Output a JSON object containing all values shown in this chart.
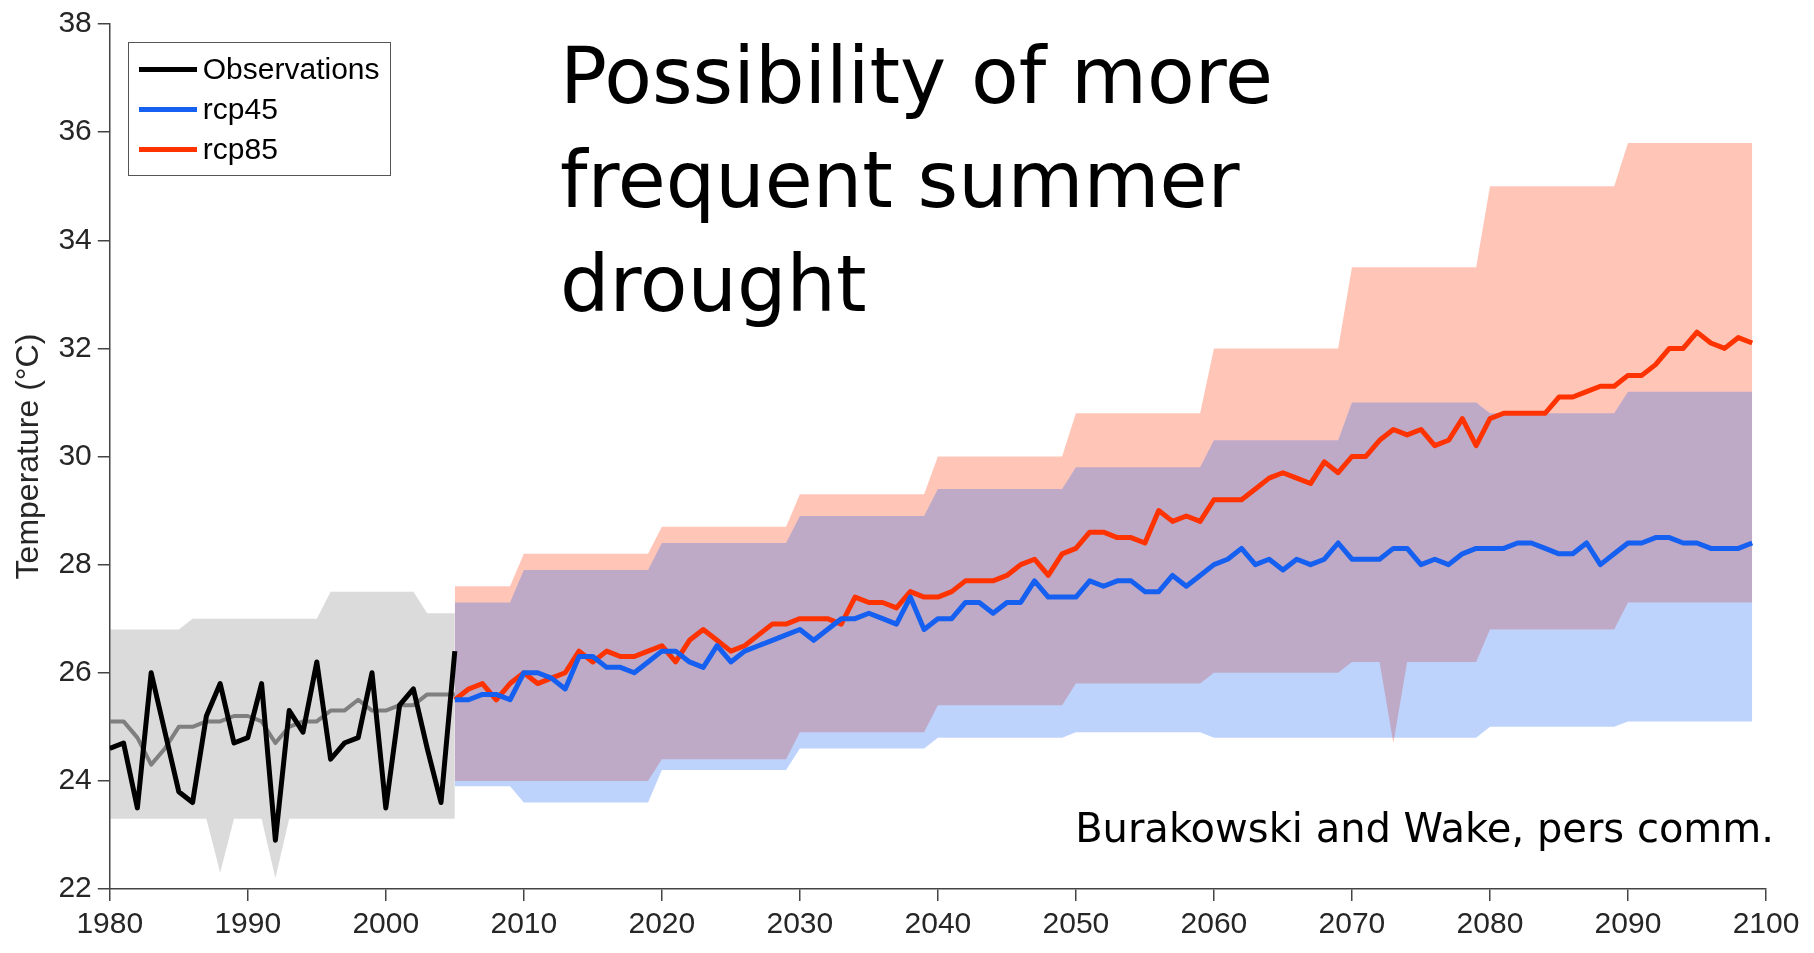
{
  "chart_data": {
    "type": "line",
    "title": "Possibility of more frequent summer drought",
    "ylabel": "Temperature (°C)",
    "annotations": [
      "Burakowski and Wake, pers comm."
    ],
    "xlim": [
      1980,
      2100
    ],
    "xticks": [
      1980,
      1990,
      2000,
      2010,
      2020,
      2030,
      2040,
      2050,
      2060,
      2070,
      2080,
      2090,
      2100
    ],
    "ylim": [
      22,
      38
    ],
    "yticks": [
      22,
      24,
      26,
      28,
      30,
      32,
      34,
      36,
      38
    ],
    "grid": false,
    "legend": "top left",
    "line_style": "solid",
    "series": [
      {
        "color": "#7f7f7f",
        "x": [
          1980,
          1981,
          1982,
          1983,
          1984,
          1985,
          1986,
          1987,
          1988,
          1989,
          1990,
          1991,
          1992,
          1993,
          1994,
          1995,
          1996,
          1997,
          1998,
          1999,
          2000,
          2001,
          2002,
          2003,
          2004,
          2005
        ],
        "values": [
          25.1,
          25.1,
          24.8,
          24.3,
          24.6,
          25.0,
          25.0,
          25.1,
          25.1,
          25.2,
          25.2,
          25.1,
          24.7,
          25.0,
          25.1,
          25.1,
          25.3,
          25.3,
          25.5,
          25.3,
          25.3,
          25.4,
          25.4,
          25.6,
          25.6,
          25.6
        ],
        "lower": [
          23.3,
          23.3,
          23.3,
          23.3,
          23.3,
          23.3,
          23.3,
          23.3,
          22.3,
          23.3,
          23.3,
          23.3,
          22.2,
          23.3,
          23.3,
          23.3,
          23.3,
          23.3,
          23.3,
          23.3,
          23.3,
          23.3,
          23.3,
          23.3,
          23.3,
          23.3
        ],
        "upper": [
          26.8,
          26.8,
          26.8,
          26.8,
          26.8,
          26.8,
          27.0,
          27.0,
          27.0,
          27.0,
          27.0,
          27.0,
          27.0,
          27.0,
          27.0,
          27.0,
          27.5,
          27.5,
          27.5,
          27.5,
          27.5,
          27.5,
          27.5,
          27.1,
          27.1,
          27.1
        ]
      },
      {
        "name": "Observations",
        "color": "#000000",
        "x": [
          1980,
          1981,
          1982,
          1983,
          1984,
          1985,
          1986,
          1987,
          1988,
          1989,
          1990,
          1991,
          1992,
          1993,
          1994,
          1995,
          1996,
          1997,
          1998,
          1999,
          2000,
          2001,
          2002,
          2003,
          2004,
          2005
        ],
        "values": [
          24.6,
          24.7,
          23.5,
          26.0,
          24.9,
          23.8,
          23.6,
          25.2,
          25.8,
          24.7,
          24.8,
          25.8,
          22.9,
          25.3,
          24.9,
          26.2,
          24.4,
          24.7,
          24.8,
          26.0,
          23.5,
          25.4,
          25.7,
          24.6,
          23.6,
          26.4
        ]
      },
      {
        "name": "rcp45",
        "color": "#1560f0",
        "x": [
          2005,
          2006,
          2007,
          2008,
          2009,
          2010,
          2011,
          2012,
          2013,
          2014,
          2015,
          2016,
          2017,
          2018,
          2019,
          2020,
          2021,
          2022,
          2023,
          2024,
          2025,
          2026,
          2027,
          2028,
          2029,
          2030,
          2031,
          2032,
          2033,
          2034,
          2035,
          2036,
          2037,
          2038,
          2039,
          2040,
          2041,
          2042,
          2043,
          2044,
          2045,
          2046,
          2047,
          2048,
          2049,
          2050,
          2051,
          2052,
          2053,
          2054,
          2055,
          2056,
          2057,
          2058,
          2059,
          2060,
          2061,
          2062,
          2063,
          2064,
          2065,
          2066,
          2067,
          2068,
          2069,
          2070,
          2071,
          2072,
          2073,
          2074,
          2075,
          2076,
          2077,
          2078,
          2079,
          2080,
          2081,
          2082,
          2083,
          2084,
          2085,
          2086,
          2087,
          2088,
          2089,
          2090,
          2091,
          2092,
          2093,
          2094,
          2095,
          2096,
          2097,
          2098,
          2099
        ],
        "values": [
          25.5,
          25.5,
          25.6,
          25.6,
          25.5,
          26.0,
          26.0,
          25.9,
          25.7,
          26.3,
          26.3,
          26.1,
          26.1,
          26.0,
          26.2,
          26.4,
          26.4,
          26.2,
          26.1,
          26.5,
          26.2,
          26.4,
          26.5,
          26.6,
          26.7,
          26.8,
          26.6,
          26.8,
          27.0,
          27.0,
          27.1,
          27.0,
          26.9,
          27.4,
          26.8,
          27.0,
          27.0,
          27.3,
          27.3,
          27.1,
          27.3,
          27.3,
          27.7,
          27.4,
          27.4,
          27.4,
          27.7,
          27.6,
          27.7,
          27.7,
          27.5,
          27.5,
          27.8,
          27.6,
          27.8,
          28.0,
          28.1,
          28.3,
          28.0,
          28.1,
          27.9,
          28.1,
          28.0,
          28.1,
          28.4,
          28.1,
          28.1,
          28.1,
          28.3,
          28.3,
          28.0,
          28.1,
          28.0,
          28.2,
          28.3,
          28.3,
          28.3,
          28.4,
          28.4,
          28.3,
          28.2,
          28.2,
          28.4,
          28.0,
          28.2,
          28.4,
          28.4,
          28.5,
          28.5,
          28.4,
          28.4,
          28.3,
          28.3,
          28.3,
          28.4
        ],
        "lower": [
          23.9,
          23.9,
          23.9,
          23.9,
          23.9,
          23.6,
          23.6,
          23.6,
          23.6,
          23.6,
          23.6,
          23.6,
          23.6,
          23.6,
          23.6,
          24.2,
          24.2,
          24.2,
          24.2,
          24.2,
          24.2,
          24.2,
          24.2,
          24.2,
          24.2,
          24.6,
          24.6,
          24.6,
          24.6,
          24.6,
          24.6,
          24.6,
          24.6,
          24.6,
          24.6,
          24.8,
          24.8,
          24.8,
          24.8,
          24.8,
          24.8,
          24.8,
          24.8,
          24.8,
          24.8,
          24.9,
          24.9,
          24.9,
          24.9,
          24.9,
          24.9,
          24.9,
          24.9,
          24.9,
          24.9,
          24.8,
          24.8,
          24.8,
          24.8,
          24.8,
          24.8,
          24.8,
          24.8,
          24.8,
          24.8,
          24.8,
          24.8,
          24.8,
          24.8,
          24.8,
          24.8,
          24.8,
          24.8,
          24.8,
          24.8,
          25.0,
          25.0,
          25.0,
          25.0,
          25.0,
          25.0,
          25.0,
          25.0,
          25.0,
          25.0,
          25.1,
          25.1,
          25.1,
          25.1,
          25.1,
          25.1,
          25.1,
          25.1,
          25.1,
          25.1
        ],
        "upper": [
          27.3,
          27.3,
          27.3,
          27.3,
          27.3,
          27.9,
          27.9,
          27.9,
          27.9,
          27.9,
          27.9,
          27.9,
          27.9,
          27.9,
          27.9,
          28.4,
          28.4,
          28.4,
          28.4,
          28.4,
          28.4,
          28.4,
          28.4,
          28.4,
          28.4,
          28.9,
          28.9,
          28.9,
          28.9,
          28.9,
          28.9,
          28.9,
          28.9,
          28.9,
          28.9,
          29.4,
          29.4,
          29.4,
          29.4,
          29.4,
          29.4,
          29.4,
          29.4,
          29.4,
          29.4,
          29.8,
          29.8,
          29.8,
          29.8,
          29.8,
          29.8,
          29.8,
          29.8,
          29.8,
          29.8,
          30.3,
          30.3,
          30.3,
          30.3,
          30.3,
          30.3,
          30.3,
          30.3,
          30.3,
          30.3,
          31.0,
          31.0,
          31.0,
          31.0,
          31.0,
          31.0,
          31.0,
          31.0,
          31.0,
          31.0,
          30.8,
          30.8,
          30.8,
          30.8,
          30.8,
          30.8,
          30.8,
          30.8,
          30.8,
          30.8,
          31.2,
          31.2,
          31.2,
          31.2,
          31.2,
          31.2,
          31.2,
          31.2,
          31.2,
          31.2
        ]
      },
      {
        "name": "rcp85",
        "color": "#ff3300",
        "x": [
          2005,
          2006,
          2007,
          2008,
          2009,
          2010,
          2011,
          2012,
          2013,
          2014,
          2015,
          2016,
          2017,
          2018,
          2019,
          2020,
          2021,
          2022,
          2023,
          2024,
          2025,
          2026,
          2027,
          2028,
          2029,
          2030,
          2031,
          2032,
          2033,
          2034,
          2035,
          2036,
          2037,
          2038,
          2039,
          2040,
          2041,
          2042,
          2043,
          2044,
          2045,
          2046,
          2047,
          2048,
          2049,
          2050,
          2051,
          2052,
          2053,
          2054,
          2055,
          2056,
          2057,
          2058,
          2059,
          2060,
          2061,
          2062,
          2063,
          2064,
          2065,
          2066,
          2067,
          2068,
          2069,
          2070,
          2071,
          2072,
          2073,
          2074,
          2075,
          2076,
          2077,
          2078,
          2079,
          2080,
          2081,
          2082,
          2083,
          2084,
          2085,
          2086,
          2087,
          2088,
          2089,
          2090,
          2091,
          2092,
          2093,
          2094,
          2095,
          2096,
          2097,
          2098,
          2099
        ],
        "values": [
          25.5,
          25.7,
          25.8,
          25.5,
          25.8,
          26.0,
          25.8,
          25.9,
          26.0,
          26.4,
          26.2,
          26.4,
          26.3,
          26.3,
          26.4,
          26.5,
          26.2,
          26.6,
          26.8,
          26.6,
          26.4,
          26.5,
          26.7,
          26.9,
          26.9,
          27.0,
          27.0,
          27.0,
          26.9,
          27.4,
          27.3,
          27.3,
          27.2,
          27.5,
          27.4,
          27.4,
          27.5,
          27.7,
          27.7,
          27.7,
          27.8,
          28.0,
          28.1,
          27.8,
          28.2,
          28.3,
          28.6,
          28.6,
          28.5,
          28.5,
          28.4,
          29.0,
          28.8,
          28.9,
          28.8,
          29.2,
          29.2,
          29.2,
          29.4,
          29.6,
          29.7,
          29.6,
          29.5,
          29.9,
          29.7,
          30.0,
          30.0,
          30.3,
          30.5,
          30.4,
          30.5,
          30.2,
          30.3,
          30.7,
          30.2,
          30.7,
          30.8,
          30.8,
          30.8,
          30.8,
          31.1,
          31.1,
          31.2,
          31.3,
          31.3,
          31.5,
          31.5,
          31.7,
          32.0,
          32.0,
          32.3,
          32.1,
          32.0,
          32.2,
          32.1
        ],
        "lower": [
          24.0,
          24.0,
          24.0,
          24.0,
          24.0,
          24.0,
          24.0,
          24.0,
          24.0,
          24.0,
          24.0,
          24.0,
          24.0,
          24.0,
          24.0,
          24.4,
          24.4,
          24.4,
          24.4,
          24.4,
          24.4,
          24.4,
          24.4,
          24.4,
          24.4,
          24.9,
          24.9,
          24.9,
          24.9,
          24.9,
          24.9,
          24.9,
          24.9,
          24.9,
          24.9,
          25.4,
          25.4,
          25.4,
          25.4,
          25.4,
          25.4,
          25.4,
          25.4,
          25.4,
          25.4,
          25.8,
          25.8,
          25.8,
          25.8,
          25.8,
          25.8,
          25.8,
          25.8,
          25.8,
          25.8,
          26.0,
          26.0,
          26.0,
          26.0,
          26.0,
          26.0,
          26.0,
          26.0,
          26.0,
          26.0,
          26.2,
          26.2,
          26.2,
          24.7,
          26.2,
          26.2,
          26.2,
          26.2,
          26.2,
          26.2,
          26.8,
          26.8,
          26.8,
          26.8,
          26.8,
          26.8,
          26.8,
          26.8,
          26.8,
          26.8,
          27.3,
          27.3,
          27.3,
          27.3,
          27.3,
          27.3,
          27.3,
          27.3,
          27.3,
          27.3
        ],
        "upper": [
          27.6,
          27.6,
          27.6,
          27.6,
          27.6,
          28.2,
          28.2,
          28.2,
          28.2,
          28.2,
          28.2,
          28.2,
          28.2,
          28.2,
          28.2,
          28.7,
          28.7,
          28.7,
          28.7,
          28.7,
          28.7,
          28.7,
          28.7,
          28.7,
          28.7,
          29.3,
          29.3,
          29.3,
          29.3,
          29.3,
          29.3,
          29.3,
          29.3,
          29.3,
          29.3,
          30.0,
          30.0,
          30.0,
          30.0,
          30.0,
          30.0,
          30.0,
          30.0,
          30.0,
          30.0,
          30.8,
          30.8,
          30.8,
          30.8,
          30.8,
          30.8,
          30.8,
          30.8,
          30.8,
          30.8,
          32.0,
          32.0,
          32.0,
          32.0,
          32.0,
          32.0,
          32.0,
          32.0,
          32.0,
          32.0,
          33.5,
          33.5,
          33.5,
          33.5,
          33.5,
          33.5,
          33.5,
          33.5,
          33.5,
          33.5,
          35.0,
          35.0,
          35.0,
          35.0,
          35.0,
          35.0,
          35.0,
          35.0,
          35.0,
          35.0,
          35.8,
          35.8,
          35.8,
          35.8,
          35.8,
          35.8,
          35.8,
          35.8,
          35.8,
          35.8
        ]
      }
    ]
  }
}
